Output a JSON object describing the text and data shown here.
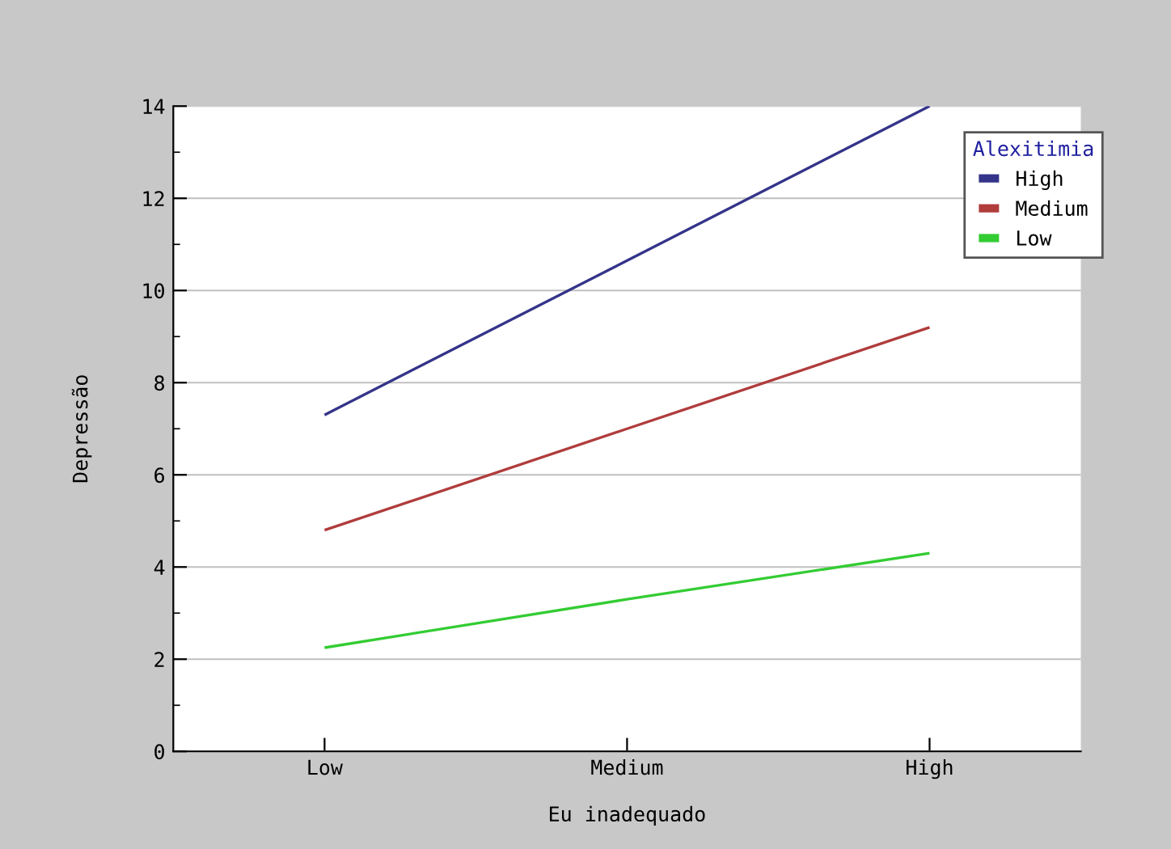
{
  "chart_data": {
    "type": "line",
    "xlabel": "Eu inadequado",
    "ylabel": "Depressão",
    "legend_title": "Alexitimia",
    "categories": [
      "Low",
      "Medium",
      "High"
    ],
    "series": [
      {
        "name": "High",
        "color": "#34348a",
        "values": [
          7.3,
          10.65,
          14.0
        ]
      },
      {
        "name": "Medium",
        "color": "#b03c3c",
        "values": [
          4.8,
          7.0,
          9.2
        ]
      },
      {
        "name": "Low",
        "color": "#33cc33",
        "values": [
          2.25,
          3.3,
          4.3
        ]
      }
    ],
    "ylim": [
      0,
      14
    ],
    "yticks": [
      0,
      2,
      4,
      6,
      8,
      10,
      12,
      14
    ],
    "grid": "y",
    "legend": "top right",
    "marker": "none",
    "line_style": "solid"
  }
}
